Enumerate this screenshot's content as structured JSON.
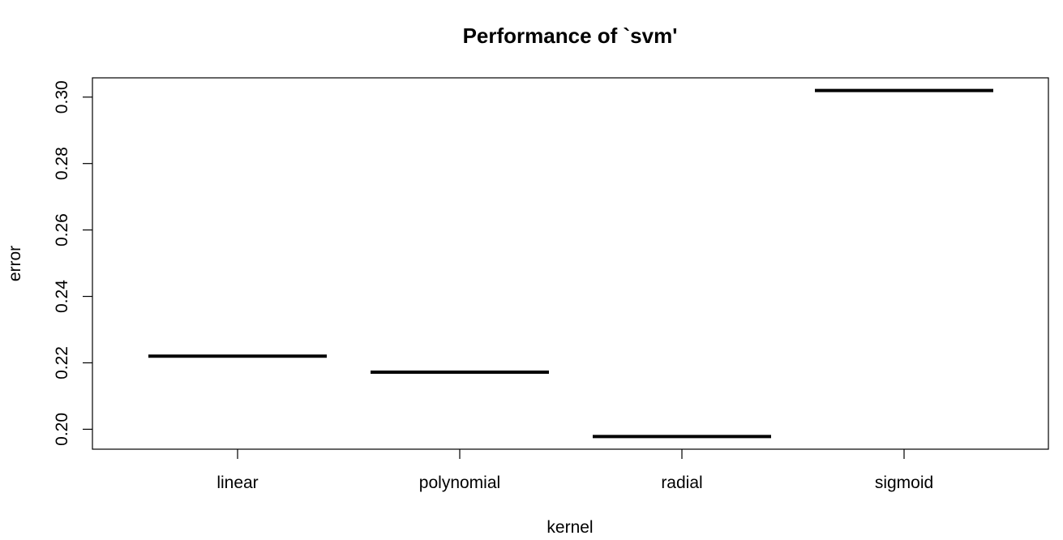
{
  "chart_data": {
    "type": "line",
    "title": "Performance of `svm'",
    "xlabel": "kernel",
    "ylabel": "error",
    "categories": [
      "linear",
      "polynomial",
      "radial",
      "sigmoid"
    ],
    "values": [
      0.222,
      0.2172,
      0.1978,
      0.302
    ],
    "yticks": [
      "0.20",
      "0.22",
      "0.24",
      "0.26",
      "0.28",
      "0.30"
    ],
    "ylim": [
      0.194,
      0.3058
    ],
    "grid": false,
    "colors": {
      "line": "#000000",
      "background": "#ffffff"
    }
  }
}
